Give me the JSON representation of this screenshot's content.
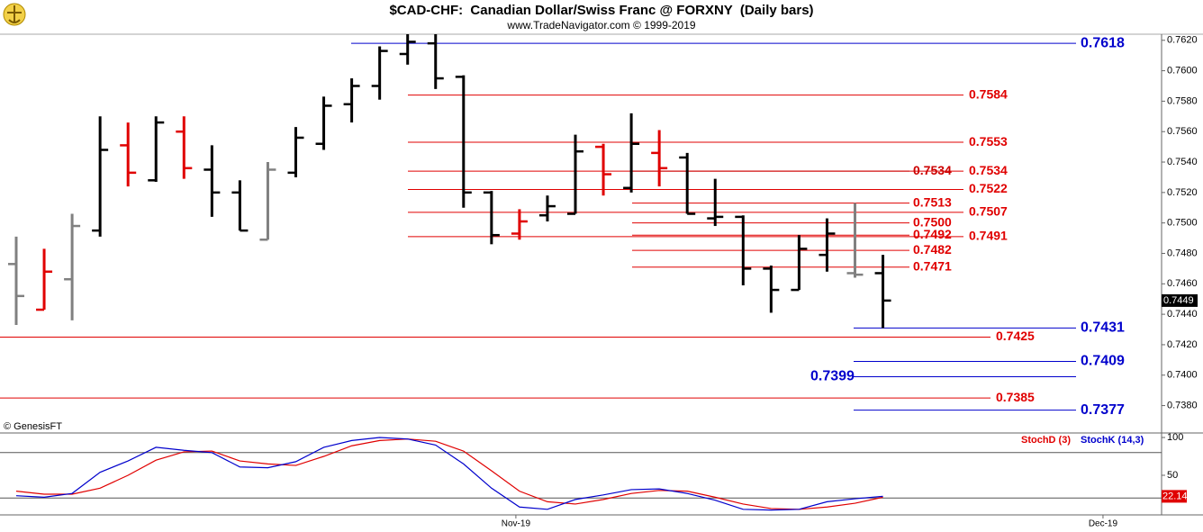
{
  "chart_data": [
    {
      "type": "ohlc",
      "title": "$CAD-CHF:  Canadian Dollar/Swiss Franc @ FORXNY  (Daily bars)",
      "subtitle": "www.TradeNavigator.com © 1999-2019",
      "note": "© GenesisFT",
      "open": [
        0.7473,
        0.7443,
        0.7463,
        0.7495,
        0.7551,
        0.7528,
        0.756,
        0.7535,
        0.752,
        0.7489,
        0.7533,
        0.7552,
        0.7578,
        0.759,
        0.7611,
        0.7618,
        0.7596,
        0.752,
        0.7493,
        0.7505,
        0.7506,
        0.755,
        0.7523,
        0.7546,
        0.7543,
        0.7503,
        0.7504,
        0.747,
        0.7456,
        0.7479,
        0.7467,
        0.7467
      ],
      "high": [
        0.7491,
        0.7483,
        0.7506,
        0.757,
        0.7566,
        0.757,
        0.757,
        0.7551,
        0.7528,
        0.754,
        0.7563,
        0.7583,
        0.7595,
        0.7616,
        0.7624,
        0.7624,
        0.7597,
        0.7521,
        0.7509,
        0.7518,
        0.7558,
        0.7552,
        0.7572,
        0.7561,
        0.7546,
        0.7529,
        0.7505,
        0.7472,
        0.7492,
        0.7503,
        0.7513,
        0.7479
      ],
      "low": [
        0.7433,
        0.7443,
        0.7436,
        0.7491,
        0.7524,
        0.7527,
        0.7529,
        0.7504,
        0.7495,
        0.7489,
        0.753,
        0.7548,
        0.7566,
        0.7581,
        0.7604,
        0.7588,
        0.751,
        0.7486,
        0.7489,
        0.7501,
        0.7506,
        0.7518,
        0.752,
        0.7524,
        0.7506,
        0.7498,
        0.7459,
        0.7441,
        0.7456,
        0.7468,
        0.7464,
        0.7431
      ],
      "close": [
        0.7452,
        0.7468,
        0.7498,
        0.7548,
        0.7533,
        0.7566,
        0.7536,
        0.752,
        0.7495,
        0.7535,
        0.7556,
        0.7577,
        0.759,
        0.7613,
        0.7619,
        0.7595,
        0.752,
        0.7492,
        0.7501,
        0.7511,
        0.7547,
        0.7532,
        0.7552,
        0.7536,
        0.7506,
        0.7504,
        0.747,
        0.7456,
        0.7483,
        0.7493,
        0.7466,
        0.7449
      ],
      "bar_colors": [
        "#808080",
        "#e00000",
        "#808080",
        "#000000",
        "#e00000",
        "#000000",
        "#e00000",
        "#000000",
        "#000000",
        "#808080",
        "#000000",
        "#000000",
        "#000000",
        "#000000",
        "#000000",
        "#000000",
        "#000000",
        "#000000",
        "#e00000",
        "#000000",
        "#000000",
        "#e00000",
        "#000000",
        "#e00000",
        "#000000",
        "#000000",
        "#000000",
        "#000000",
        "#000000",
        "#000000",
        "#808080",
        "#000000"
      ],
      "levels": [
        0.7618,
        0.7584,
        0.7553,
        0.7534,
        0.7534,
        0.7522,
        0.7513,
        0.7507,
        {
          "value": 0.75,
          "label": "0.7500"
        },
        0.7492,
        0.7491,
        0.7482,
        0.7471,
        0.7431,
        0.7425,
        0.7409,
        0.7399,
        0.7385,
        0.7377
      ],
      "level_colors": [
        "#0000cc",
        "#e00000",
        "#e00000",
        "#e00000",
        "#cc0000",
        "#e00000",
        "#e00000",
        "#e00000",
        "#e00000",
        "#e00000",
        "#e00000",
        "#e00000",
        "#e00000",
        "#0000cc",
        "#e00000",
        "#0000cc",
        "#0000cc",
        "#e00000",
        "#0000cc"
      ],
      "ylim": [
        0.7362,
        0.7624
      ],
      "yticks": [
        {
          "value": 0.738,
          "label": "0.7380"
        },
        {
          "value": 0.74,
          "label": "0.7400"
        },
        {
          "value": 0.742,
          "label": "0.7420"
        },
        {
          "value": 0.744,
          "label": "0.7440"
        },
        {
          "value": 0.746,
          "label": "0.7460"
        },
        {
          "value": 0.748,
          "label": "0.7480"
        },
        {
          "value": 0.75,
          "label": "0.7500"
        },
        {
          "value": 0.752,
          "label": "0.7520"
        },
        {
          "value": 0.754,
          "label": "0.7540"
        },
        {
          "value": 0.756,
          "label": "0.7560"
        },
        {
          "value": 0.758,
          "label": "0.7580"
        },
        {
          "value": 0.76,
          "label": "0.7600"
        },
        {
          "value": 0.762,
          "label": "0.7620"
        }
      ],
      "xticks": [
        {
          "value": 18,
          "label": "Nov-19"
        },
        {
          "value": 39,
          "label": "Dec-19"
        }
      ]
    },
    {
      "type": "line",
      "series": [
        {
          "name": "StochD (3)",
          "color": "#e00000",
          "values": [
            29,
            25,
            25,
            33,
            50,
            70,
            81,
            82,
            69,
            65,
            63,
            75,
            89,
            96,
            98,
            95,
            82,
            56,
            29,
            15,
            12,
            18,
            26,
            30,
            29,
            21,
            12,
            6,
            5,
            8,
            13,
            21
          ]
        },
        {
          "name": "StochK (14,3)",
          "color": "#0000cc",
          "values": [
            23,
            21,
            26,
            54,
            69,
            87,
            83,
            80,
            61,
            60,
            68,
            87,
            96,
            100,
            98,
            90,
            65,
            33,
            8,
            5,
            18,
            24,
            31,
            32,
            26,
            17,
            5,
            4,
            5,
            15,
            19,
            22.14
          ]
        }
      ],
      "levels": [
        80,
        20
      ],
      "ylim": [
        0,
        100
      ],
      "yticks": [
        50,
        100
      ]
    }
  ]
}
